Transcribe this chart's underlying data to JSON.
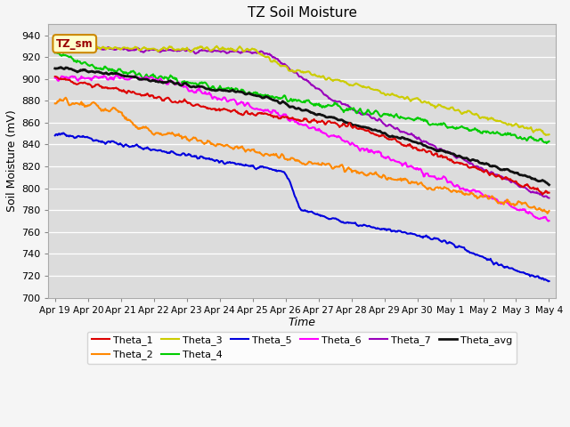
{
  "title": "TZ Soil Moisture",
  "xlabel": "Time",
  "ylabel": "Soil Moisture (mV)",
  "ylim": [
    700,
    950
  ],
  "yticks": [
    700,
    720,
    740,
    760,
    780,
    800,
    820,
    840,
    860,
    880,
    900,
    920,
    940
  ],
  "date_labels": [
    "Apr 19",
    "Apr 20",
    "Apr 21",
    "Apr 22",
    "Apr 23",
    "Apr 24",
    "Apr 25",
    "Apr 26",
    "Apr 27",
    "Apr 28",
    "Apr 29",
    "Apr 30",
    "May 1",
    "May 2",
    "May 3",
    "May 4"
  ],
  "plot_bg": "#dcdcdc",
  "fig_bg": "#f5f5f5",
  "legend_label": "TZ_sm",
  "legend_box_facecolor": "#ffffcc",
  "legend_box_edgecolor": "#cc8800",
  "grid_color": "#ffffff",
  "series_colors": {
    "Theta_1": "#dd0000",
    "Theta_2": "#ff8800",
    "Theta_3": "#cccc00",
    "Theta_4": "#00cc00",
    "Theta_5": "#0000dd",
    "Theta_6": "#ff00ff",
    "Theta_7": "#9900bb",
    "Theta_avg": "#111111"
  },
  "series_lw": {
    "Theta_1": 1.5,
    "Theta_2": 1.5,
    "Theta_3": 1.5,
    "Theta_4": 1.5,
    "Theta_5": 1.5,
    "Theta_6": 1.5,
    "Theta_7": 1.5,
    "Theta_avg": 2.0
  }
}
